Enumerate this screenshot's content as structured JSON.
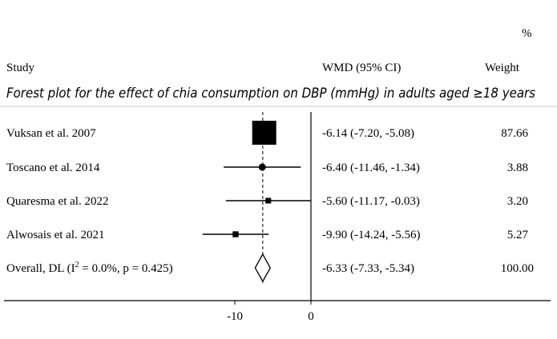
{
  "chart_data": {
    "type": "forest",
    "title": "Forest plot for the effect of chia consumption on DBP (mmHg) in adults aged ≥18 years",
    "headers": {
      "study": "Study",
      "effect": "WMD (95% CI)",
      "weight_unit": "%",
      "weight": "Weight"
    },
    "studies": [
      {
        "name": "Vuksan et al. 2007",
        "est": -6.14,
        "lo": -7.2,
        "hi": -5.08,
        "ci_text": "-6.14 (-7.20, -5.08)",
        "weight": 87.66,
        "weight_text": "87.66"
      },
      {
        "name": "Toscano et al. 2014",
        "est": -6.4,
        "lo": -11.46,
        "hi": -1.34,
        "ci_text": "-6.40 (-11.46, -1.34)",
        "weight": 3.88,
        "weight_text": "3.88"
      },
      {
        "name": "Quaresma et al. 2022",
        "est": -5.6,
        "lo": -11.17,
        "hi": -0.03,
        "ci_text": "-5.60 (-11.17, -0.03)",
        "weight": 3.2,
        "weight_text": "3.20"
      },
      {
        "name": "Alwosais et al. 2021",
        "est": -9.9,
        "lo": -14.24,
        "hi": -5.56,
        "ci_text": "-9.90 (-14.24, -5.56)",
        "weight": 5.27,
        "weight_text": "5.27"
      }
    ],
    "overall": {
      "name_prefix": "Overall, DL (I",
      "name_sup": "2",
      "name_suffix": " = 0.0%, p = 0.425)",
      "est": -6.33,
      "lo": -7.33,
      "hi": -5.34,
      "ci_text": "-6.33 (-7.33, -5.34)",
      "weight_text": "100.00"
    },
    "x_ticks": [
      -10,
      0
    ],
    "x_tick_labels": [
      "-10",
      "0"
    ],
    "null_line": 0
  }
}
